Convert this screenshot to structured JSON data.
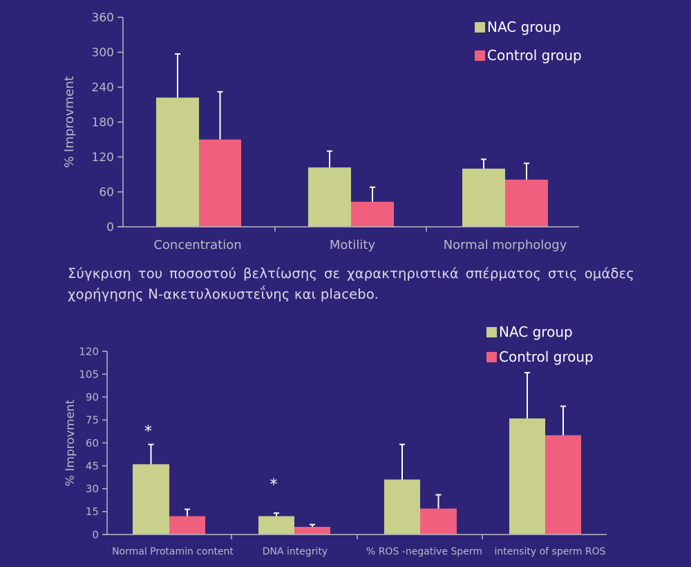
{
  "caption": "Σύγκριση του ποσοστού βελτίωσης σε χαρακτηριστικά σπέρματος στις ομάδες χορήγησης Ν-ακετυλοκυστεΐνης και placebo.",
  "colors": {
    "background": "#2d2477",
    "nac": "#c8d08b",
    "control": "#f0607e",
    "axis": "#b9b9c8",
    "text": "#ffffff"
  },
  "chart_data": [
    {
      "type": "bar",
      "ylabel": "% Improvment",
      "ylim": [
        0,
        360
      ],
      "yticks": [
        "0",
        "60",
        "120",
        "180",
        "240",
        "300",
        "360"
      ],
      "categories": [
        "Concentration",
        "Motility",
        "Normal morphology"
      ],
      "series": [
        {
          "name": "NAC group",
          "values": [
            222,
            102,
            100
          ],
          "errors": [
            75,
            28,
            16
          ]
        },
        {
          "name": "Control group",
          "values": [
            150,
            43,
            81
          ],
          "errors": [
            82,
            25,
            28
          ]
        }
      ],
      "legend": "top-right",
      "grid": false,
      "annotations": []
    },
    {
      "type": "bar",
      "ylabel": "% Improvment",
      "ylim": [
        0,
        120
      ],
      "yticks": [
        "0",
        "15",
        "30",
        "45",
        "60",
        "75",
        "90",
        "105",
        "120"
      ],
      "categories": [
        "Normal Protamin content",
        "DNA integrity",
        "% ROS -negative Sperm",
        "intensity of sperm ROS"
      ],
      "series": [
        {
          "name": "NAC group",
          "values": [
            46,
            12,
            36,
            76
          ],
          "errors": [
            13,
            2,
            23,
            30
          ]
        },
        {
          "name": "Control group",
          "values": [
            12,
            5,
            17,
            65
          ],
          "errors": [
            4.5,
            1.5,
            9,
            19
          ]
        }
      ],
      "legend": "top-right",
      "grid": false,
      "annotations": [
        {
          "text": "*",
          "category": "Normal Protamin content",
          "value": 68
        },
        {
          "text": "*",
          "category": "DNA integrity",
          "value": 33
        }
      ]
    }
  ]
}
